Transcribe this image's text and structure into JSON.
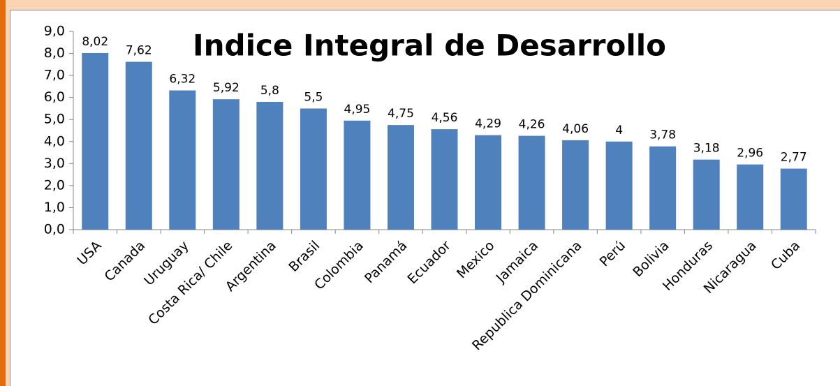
{
  "chart_data": {
    "type": "bar",
    "title": "Indice Integral de Desarrollo",
    "categories": [
      "USA",
      "Canada",
      "Uruguay",
      "Costa Rica/ Chile",
      "Argentina",
      "Brasil",
      "Colombia",
      "Panamá",
      "Ecuador",
      "Mexico",
      "Jamaica",
      "Republica Dominicana",
      "Perú",
      "Bolivia",
      "Honduras",
      "Nicaragua",
      "Cuba"
    ],
    "values": [
      8.02,
      7.62,
      6.32,
      5.92,
      5.8,
      5.5,
      4.95,
      4.75,
      4.56,
      4.29,
      4.26,
      4.06,
      4,
      3.78,
      3.18,
      2.96,
      2.77
    ],
    "value_labels": [
      "8,02",
      "7,62",
      "6,32",
      "5,92",
      "5,8",
      "5,5",
      "4,95",
      "4,75",
      "4,56",
      "4,29",
      "4,26",
      "4,06",
      "4",
      "3,78",
      "3,18",
      "2,96",
      "2,77"
    ],
    "color": "#4f81bd",
    "ylim": [
      0,
      9
    ],
    "yticks": [
      {
        "value": 0,
        "label": "0,0"
      },
      {
        "value": 1,
        "label": "1,0"
      },
      {
        "value": 2,
        "label": "2,0"
      },
      {
        "value": 3,
        "label": "3,0"
      },
      {
        "value": 4,
        "label": "4,0"
      },
      {
        "value": 5,
        "label": "5,0"
      },
      {
        "value": 6,
        "label": "6,0"
      },
      {
        "value": 7,
        "label": "7,0"
      },
      {
        "value": 8,
        "label": "8,0"
      },
      {
        "value": 9,
        "label": "9,0"
      }
    ],
    "grid": false
  }
}
